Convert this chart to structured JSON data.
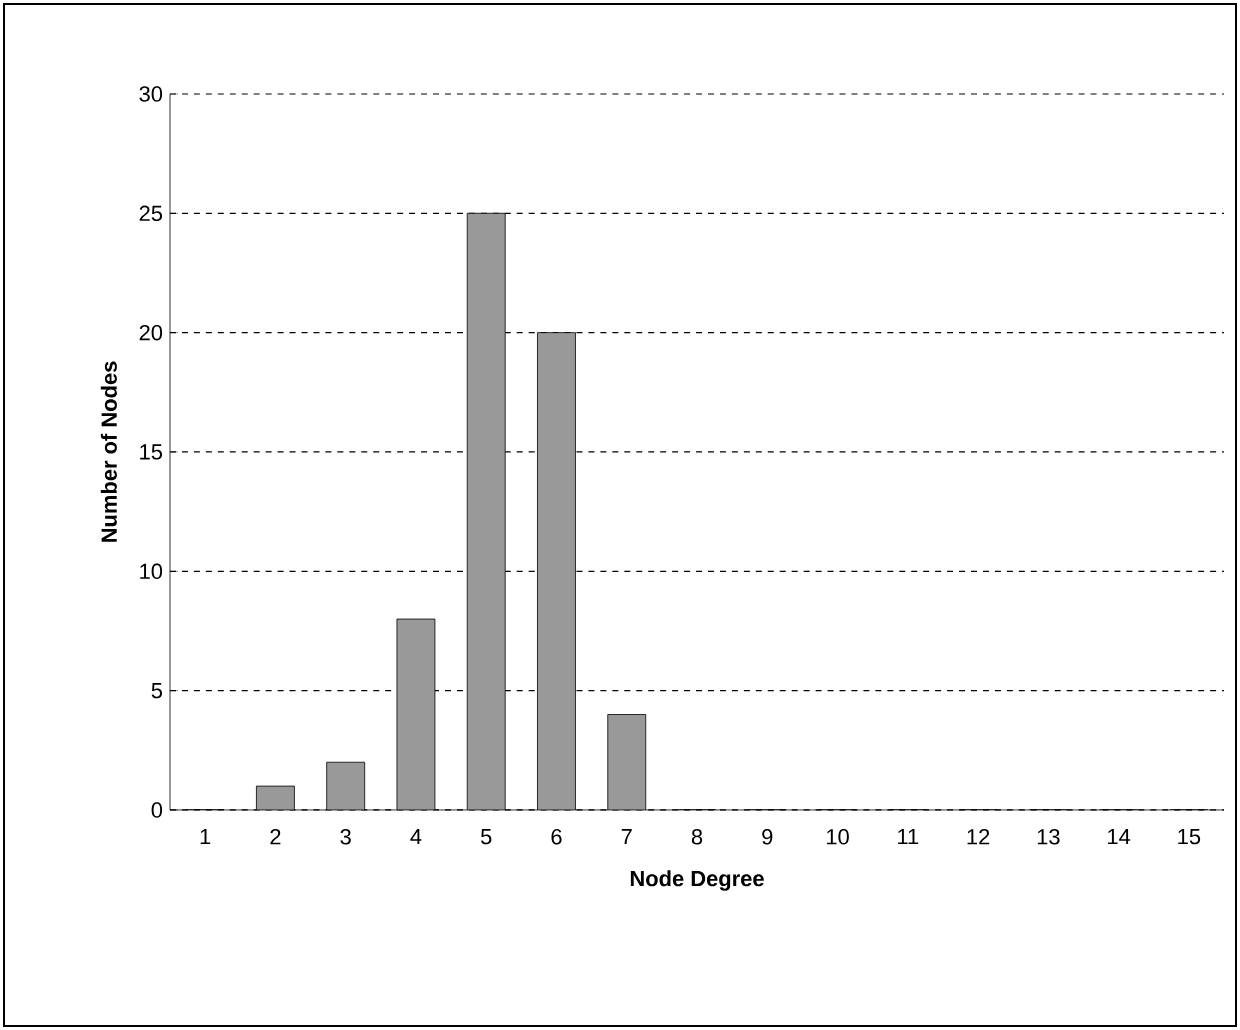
{
  "chart_data": {
    "type": "bar",
    "xlabel": "Node Degree",
    "ylabel": "Number of Nodes",
    "categories": [
      "1",
      "2",
      "3",
      "4",
      "5",
      "6",
      "7",
      "8",
      "9",
      "10",
      "11",
      "12",
      "13",
      "14",
      "15"
    ],
    "values": [
      0,
      1,
      2,
      8,
      25,
      20,
      4,
      0,
      0,
      0,
      0,
      0,
      0,
      0,
      0
    ],
    "color": "#999999",
    "ylim": [
      0,
      30
    ],
    "yticks": [
      0,
      5,
      10,
      15,
      20,
      25,
      30
    ],
    "grid": "y"
  }
}
